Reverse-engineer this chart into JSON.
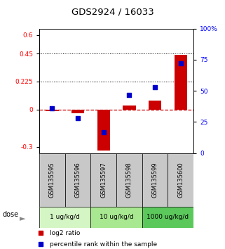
{
  "title": "GDS2924 / 16033",
  "samples": [
    "GSM135595",
    "GSM135596",
    "GSM135597",
    "GSM135598",
    "GSM135599",
    "GSM135600"
  ],
  "log2_ratio": [
    -0.01,
    -0.03,
    -0.33,
    0.03,
    0.07,
    0.44
  ],
  "percentile_rank": [
    36,
    28,
    17,
    47,
    53,
    72
  ],
  "dose_groups": [
    {
      "label": "1 ug/kg/d",
      "samples": [
        0,
        1
      ],
      "color": "#d4f5c4"
    },
    {
      "label": "10 ug/kg/d",
      "samples": [
        2,
        3
      ],
      "color": "#a8e890"
    },
    {
      "label": "1000 ug/kg/d",
      "samples": [
        4,
        5
      ],
      "color": "#5bc85b"
    }
  ],
  "ylim_left": [
    -0.35,
    0.65
  ],
  "ylim_right": [
    0,
    100
  ],
  "yticks_left": [
    -0.3,
    0.0,
    0.225,
    0.45,
    0.6
  ],
  "yticks_right": [
    0,
    25,
    50,
    75,
    100
  ],
  "ytick_labels_left": [
    "-0.3",
    "0",
    "0.225",
    "0.45",
    "0.6"
  ],
  "ytick_labels_right": [
    "0",
    "25",
    "50",
    "75",
    "100%"
  ],
  "hlines": [
    0.45,
    0.225
  ],
  "bar_color": "#cc0000",
  "dot_color": "#0000cc",
  "zero_line_color": "#cc0000",
  "bar_width": 0.5,
  "dot_size": 22,
  "sample_bg_color": "#c8c8c8",
  "legend_bar_color": "#cc0000",
  "legend_dot_color": "#0000cc"
}
